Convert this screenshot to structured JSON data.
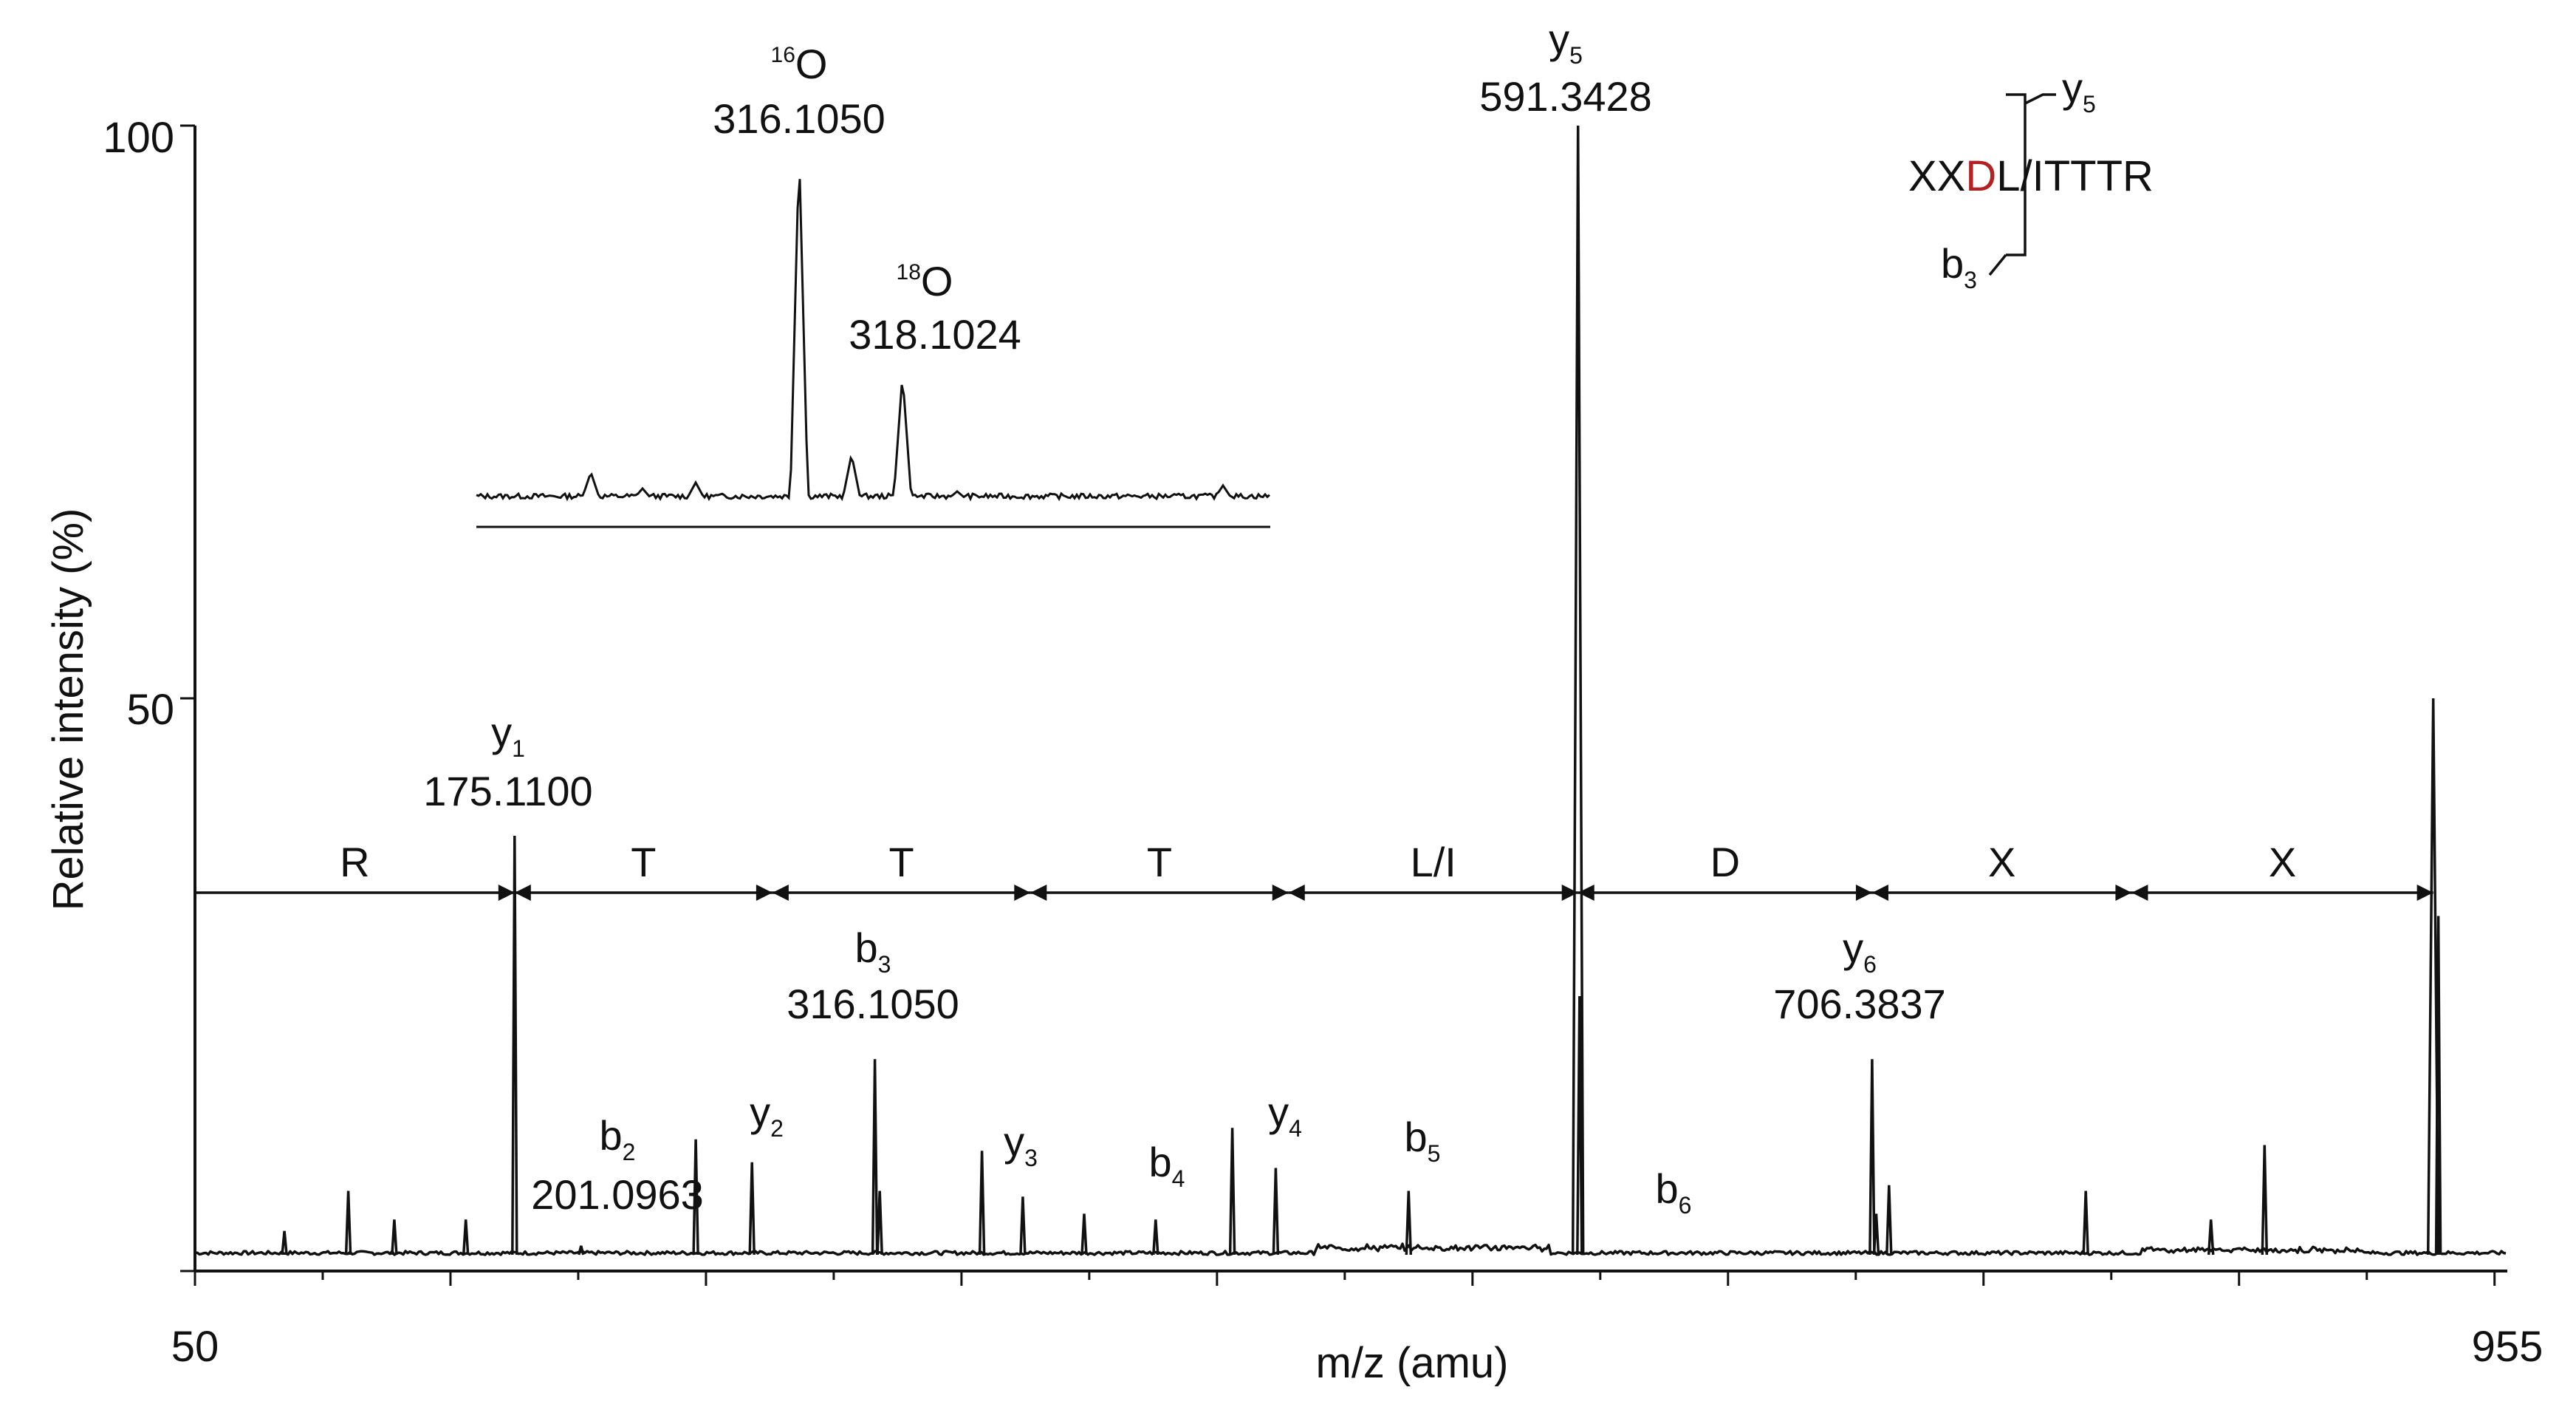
{
  "chart_data": {
    "type": "line",
    "title": "",
    "xlabel": "m/z (amu)",
    "ylabel": "Relative intensity (%)",
    "xlim": [
      50,
      955
    ],
    "ylim": [
      0,
      100
    ],
    "x_tick_labels": [
      "50",
      "955"
    ],
    "y_tick_labels": [
      "50",
      "100"
    ],
    "grid": false,
    "colors": {
      "line": "#111111",
      "highlight": "#b22222"
    },
    "peaks": [
      {
        "x": 85,
        "y": 3.5
      },
      {
        "x": 110,
        "y": 7
      },
      {
        "x": 128,
        "y": 4.5
      },
      {
        "x": 156,
        "y": 4.5
      },
      {
        "x": 175.1,
        "y": 38
      },
      {
        "x": 201.1,
        "y": 2.2
      },
      {
        "x": 246,
        "y": 11.5
      },
      {
        "x": 268,
        "y": 9.5
      },
      {
        "x": 316.1,
        "y": 18.5
      },
      {
        "x": 318,
        "y": 7
      },
      {
        "x": 358,
        "y": 10.5
      },
      {
        "x": 374,
        "y": 6.5
      },
      {
        "x": 398,
        "y": 5
      },
      {
        "x": 426,
        "y": 4.5
      },
      {
        "x": 456,
        "y": 12.5
      },
      {
        "x": 473,
        "y": 9
      },
      {
        "x": 525,
        "y": 7
      },
      {
        "x": 591.3,
        "y": 100
      },
      {
        "x": 591.9,
        "y": 24
      },
      {
        "x": 706.4,
        "y": 18.5
      },
      {
        "x": 708,
        "y": 5
      },
      {
        "x": 713,
        "y": 7.5
      },
      {
        "x": 790,
        "y": 7
      },
      {
        "x": 839,
        "y": 4.5
      },
      {
        "x": 860,
        "y": 11
      },
      {
        "x": 926,
        "y": 50
      },
      {
        "x": 928,
        "y": 31
      }
    ],
    "ion_labels": [
      {
        "ion": "y",
        "sub": "1",
        "value": "175.1100",
        "x": 175.1
      },
      {
        "ion": "b",
        "sub": "2",
        "value": "201.0963",
        "x": 201.1
      },
      {
        "ion": "y",
        "sub": "2",
        "value": "",
        "x": 268
      },
      {
        "ion": "b",
        "sub": "3",
        "value": "316.1050",
        "x": 316.1
      },
      {
        "ion": "y",
        "sub": "3",
        "value": "",
        "x": 374
      },
      {
        "ion": "b",
        "sub": "4",
        "value": "",
        "x": 426
      },
      {
        "ion": "y",
        "sub": "4",
        "value": "",
        "x": 473
      },
      {
        "ion": "b",
        "sub": "5",
        "value": "",
        "x": 525
      },
      {
        "ion": "y",
        "sub": "5",
        "value": "591.3428",
        "x": 591.3
      },
      {
        "ion": "b",
        "sub": "6",
        "value": "",
        "x": 645
      },
      {
        "ion": "y",
        "sub": "6",
        "value": "706.3837",
        "x": 706.4
      }
    ],
    "sequence_ladder": {
      "residues": [
        "R",
        "T",
        "T",
        "T",
        "L/I",
        "D",
        "X",
        "X"
      ],
      "boundaries": [
        50,
        175.1,
        276,
        377,
        478,
        591.3,
        706.4,
        808,
        926
      ]
    },
    "inset": {
      "peaks": [
        {
          "isotope_sup": "16",
          "isotope": "O",
          "value": "316.1050"
        },
        {
          "isotope_sup": "18",
          "isotope": "O",
          "value": "318.1024"
        }
      ]
    },
    "peptide": {
      "prefix": "XX",
      "highlight": "D",
      "suffix": "L/ITTTR",
      "top_ion": "y",
      "top_ion_sub": "5",
      "bottom_ion": "b",
      "bottom_ion_sub": "3"
    }
  }
}
